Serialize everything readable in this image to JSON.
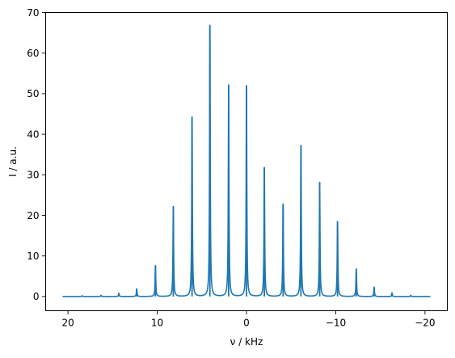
{
  "chart_data": {
    "type": "line",
    "title": "",
    "xlabel": "ν / kHz",
    "ylabel": "I / a.u.",
    "xlim": [
      22.5,
      -22.5
    ],
    "ylim": [
      -3.5,
      70
    ],
    "x_axis_reversed": true,
    "xticks": [
      20,
      10,
      0,
      -10,
      -20
    ],
    "xtick_labels": [
      "20",
      "10",
      "0",
      "−10",
      "−20"
    ],
    "yticks": [
      0,
      10,
      20,
      30,
      40,
      50,
      60,
      70
    ],
    "ytick_labels": [
      "0",
      "10",
      "20",
      "30",
      "40",
      "50",
      "60",
      "70"
    ],
    "grid": false,
    "x_range": [
      20.6,
      -20.6
    ],
    "baseline": 0,
    "series": [
      {
        "color": "#1f77b4",
        "peaks": [
          {
            "x": 18.4,
            "y": 0.2
          },
          {
            "x": 16.3,
            "y": 0.3
          },
          {
            "x": 14.3,
            "y": 0.8
          },
          {
            "x": 12.3,
            "y": 1.9
          },
          {
            "x": 10.2,
            "y": 7.6
          },
          {
            "x": 8.2,
            "y": 22.2
          },
          {
            "x": 6.1,
            "y": 44.3
          },
          {
            "x": 4.1,
            "y": 66.8
          },
          {
            "x": 2.0,
            "y": 52.1
          },
          {
            "x": 0.0,
            "y": 52.0
          },
          {
            "x": -2.0,
            "y": 31.8
          },
          {
            "x": -4.1,
            "y": 22.8
          },
          {
            "x": -6.1,
            "y": 37.2
          },
          {
            "x": -8.2,
            "y": 28.1
          },
          {
            "x": -10.2,
            "y": 18.5
          },
          {
            "x": -12.3,
            "y": 6.8
          },
          {
            "x": -14.3,
            "y": 2.3
          },
          {
            "x": -16.3,
            "y": 0.9
          },
          {
            "x": -18.4,
            "y": 0.3
          }
        ]
      }
    ]
  }
}
